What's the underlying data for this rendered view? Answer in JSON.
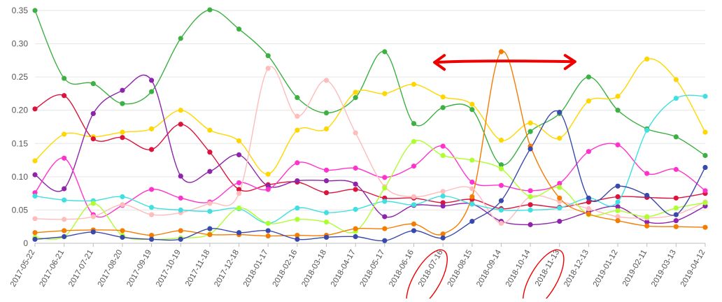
{
  "chart_data": {
    "type": "line",
    "title": "",
    "xlabel": "",
    "ylabel": "",
    "ylim": [
      0,
      0.35
    ],
    "grid": "horizontal",
    "legend": "none",
    "y_ticks": [
      "0",
      "0.05",
      "0.10",
      "0.15",
      "0.20",
      "0.25",
      "0.30",
      "0.35"
    ],
    "categories": [
      "2017-05-22",
      "2017-06-21",
      "2017-07-21",
      "2017-08-20",
      "2017-09-19",
      "2017-10-19",
      "2017-11-18",
      "2017-12-18",
      "2018-01-17",
      "2018-02-16",
      "2018-03-18",
      "2018-04-17",
      "2018-05-17",
      "2018-06-16",
      "2018-07-16",
      "2018-08-15",
      "2018-09-14",
      "2018-10-14",
      "2018-11-13",
      "2018-12-13",
      "2019-01-12",
      "2019-02-11",
      "2019-03-13",
      "2019-04-12"
    ],
    "series": [
      {
        "color": "#3cb043",
        "values": [
          0.35,
          0.248,
          0.24,
          0.21,
          0.228,
          0.308,
          0.351,
          0.322,
          0.282,
          0.219,
          0.196,
          0.219,
          0.288,
          0.18,
          0.204,
          0.201,
          0.118,
          0.168,
          0.195,
          0.25,
          0.2,
          0.172,
          0.16,
          0.132
        ]
      },
      {
        "color": "#ffd700",
        "values": [
          0.124,
          0.164,
          0.16,
          0.167,
          0.172,
          0.2,
          0.17,
          0.154,
          0.104,
          0.17,
          0.172,
          0.227,
          0.225,
          0.239,
          0.22,
          0.209,
          0.155,
          0.181,
          0.158,
          0.214,
          0.221,
          0.277,
          0.246,
          0.167
        ]
      },
      {
        "color": "#dc143c",
        "values": [
          0.202,
          0.222,
          0.157,
          0.159,
          0.141,
          0.179,
          0.137,
          0.081,
          0.088,
          0.092,
          0.076,
          0.081,
          0.068,
          0.068,
          0.061,
          0.066,
          0.052,
          0.058,
          0.054,
          0.062,
          0.07,
          0.069,
          0.068,
          0.075
        ]
      },
      {
        "color": "#8e24aa",
        "values": [
          0.103,
          0.082,
          0.195,
          0.23,
          0.245,
          0.101,
          0.108,
          0.133,
          0.086,
          0.094,
          0.094,
          0.089,
          0.04,
          0.057,
          0.056,
          0.059,
          0.033,
          0.028,
          0.033,
          0.047,
          0.055,
          0.032,
          0.034,
          0.056
        ]
      },
      {
        "color": "#ff33cc",
        "values": [
          0.076,
          0.128,
          0.043,
          0.057,
          0.081,
          0.068,
          0.062,
          0.091,
          0.081,
          0.121,
          0.11,
          0.113,
          0.099,
          0.116,
          0.146,
          0.092,
          0.087,
          0.079,
          0.09,
          0.138,
          0.148,
          0.105,
          0.111,
          0.079
        ]
      },
      {
        "color": "#ffbcbc",
        "values": [
          0.037,
          0.036,
          0.04,
          0.058,
          0.043,
          0.046,
          0.06,
          0.075,
          0.263,
          0.191,
          0.245,
          0.166,
          0.085,
          0.07,
          0.078,
          0.082,
          0.03,
          0.07,
          0.063,
          0.052,
          0.04,
          0.038,
          0.043,
          0.062
        ]
      },
      {
        "color": "#40e0e0",
        "values": [
          0.071,
          0.065,
          0.064,
          0.07,
          0.054,
          0.05,
          0.048,
          0.052,
          0.03,
          0.053,
          0.046,
          0.051,
          0.063,
          0.058,
          0.071,
          0.059,
          0.05,
          0.05,
          0.053,
          0.068,
          0.062,
          0.17,
          0.218,
          0.221
        ]
      },
      {
        "color": "#adff2f",
        "values": [
          0.009,
          0.01,
          0.06,
          0.012,
          0.006,
          0.008,
          0.014,
          0.053,
          0.03,
          0.036,
          0.032,
          0.018,
          0.083,
          0.153,
          0.132,
          0.125,
          0.112,
          0.07,
          0.084,
          0.043,
          0.049,
          0.04,
          0.053,
          0.061
        ]
      },
      {
        "color": "#f57c00",
        "values": [
          0.016,
          0.019,
          0.02,
          0.019,
          0.012,
          0.019,
          0.013,
          0.013,
          0.011,
          0.012,
          0.012,
          0.022,
          0.022,
          0.029,
          0.014,
          0.07,
          0.288,
          0.146,
          0.068,
          0.044,
          0.034,
          0.026,
          0.025,
          0.024
        ]
      },
      {
        "color": "#3949ab",
        "values": [
          0.006,
          0.01,
          0.017,
          0.009,
          0.006,
          0.006,
          0.022,
          0.016,
          0.019,
          0.006,
          0.009,
          0.01,
          0.004,
          0.019,
          0.008,
          0.033,
          0.064,
          0.142,
          0.197,
          0.068,
          0.086,
          0.072,
          0.043,
          0.114
        ]
      }
    ],
    "annotations": {
      "arrow": {
        "from_category": "2018-07-16",
        "to_category": "2018-11-13",
        "y": 0.272,
        "color": "#ee0000"
      },
      "circled_labels": [
        "2018-07-16",
        "2018-11-13"
      ]
    }
  }
}
